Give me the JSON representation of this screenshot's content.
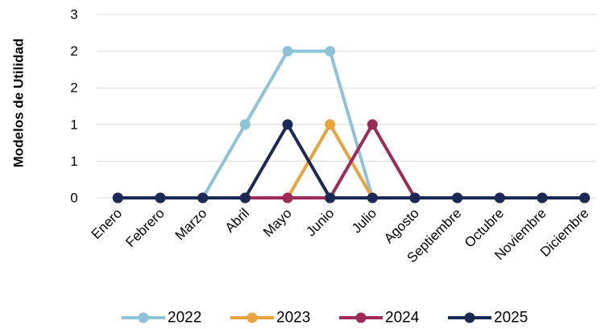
{
  "chart_data": {
    "type": "line",
    "title": "",
    "xlabel": "",
    "ylabel": "Modelos de Utilidad",
    "categories": [
      "Enero",
      "Febrero",
      "Marzo",
      "Abril",
      "Mayo",
      "Junio",
      "Julio",
      "Agosto",
      "Septiembre",
      "Octubre",
      "Noviembre",
      "Diciembre"
    ],
    "y_tick_labels": [
      "0",
      "1",
      "1",
      "2",
      "2",
      "3"
    ],
    "ylim": [
      0,
      2.5
    ],
    "grid": "horizontal",
    "legend_position": "bottom",
    "series": [
      {
        "name": "2022",
        "color": "#8EC3D7",
        "values": [
          0,
          0,
          0,
          1,
          2,
          2,
          0,
          0,
          0,
          0,
          0,
          0
        ]
      },
      {
        "name": "2023",
        "color": "#E8A33D",
        "values": [
          0,
          0,
          0,
          0,
          0,
          1,
          0,
          0,
          0,
          0,
          0,
          0
        ]
      },
      {
        "name": "2024",
        "color": "#9E2A57",
        "values": [
          0,
          0,
          0,
          0,
          0,
          0,
          1,
          0,
          0,
          0,
          0,
          0
        ]
      },
      {
        "name": "2025",
        "color": "#1B2A55",
        "values": [
          0,
          0,
          0,
          0,
          1,
          0,
          0,
          0,
          0,
          0,
          0,
          0
        ]
      }
    ]
  }
}
